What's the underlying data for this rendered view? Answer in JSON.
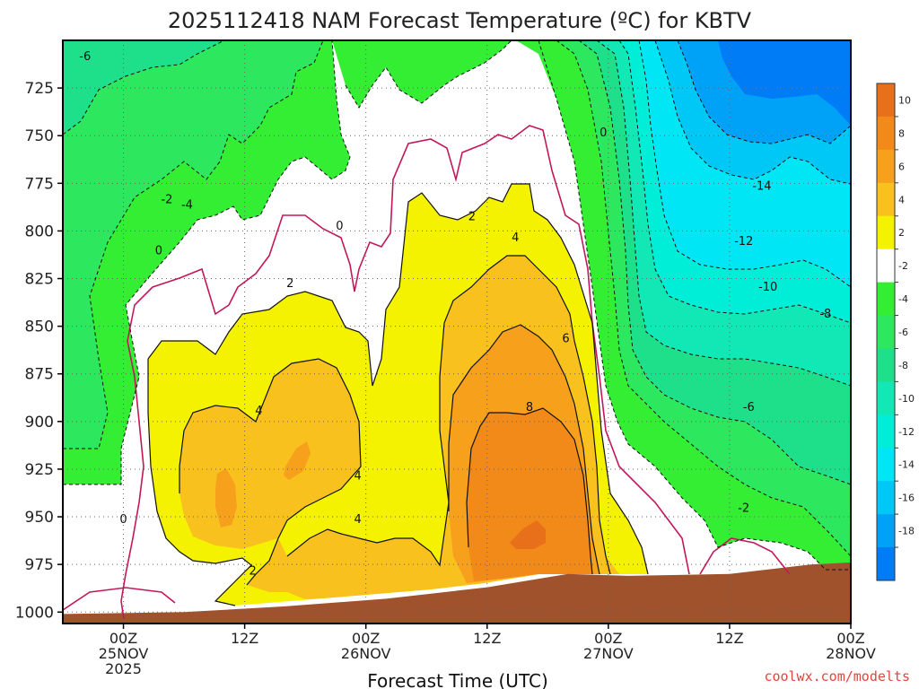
{
  "title": "2025112418 NAM Forecast Temperature (ºC) for KBTV",
  "credit": "coolwx.com/modelts",
  "chart_data": {
    "type": "heatmap",
    "title": "2025112418 NAM Forecast Temperature (ºC) for KBTV",
    "xlabel": "Forecast Time (UTC)",
    "ylabel": "",
    "y_axis": {
      "units": "hPa",
      "ticks": [
        "725",
        "750",
        "775",
        "800",
        "825",
        "850",
        "875",
        "900",
        "925",
        "950",
        "975",
        "1000"
      ],
      "range": [
        700,
        1006
      ],
      "inverted": true
    },
    "x_axis": {
      "range_hours": [
        18,
        96
      ],
      "ticks": [
        {
          "hour": 24,
          "line1": "00Z",
          "line2": "25NOV",
          "line3": "2025"
        },
        {
          "hour": 36,
          "line1": "12Z",
          "line2": "",
          "line3": ""
        },
        {
          "hour": 48,
          "line1": "00Z",
          "line2": "26NOV",
          "line3": ""
        },
        {
          "hour": 60,
          "line1": "12Z",
          "line2": "",
          "line3": ""
        },
        {
          "hour": 72,
          "line1": "00Z",
          "line2": "27NOV",
          "line3": ""
        },
        {
          "hour": 84,
          "line1": "12Z",
          "line2": "",
          "line3": ""
        },
        {
          "hour": 96,
          "line1": "00Z",
          "line2": "28NOV",
          "line3": ""
        }
      ]
    },
    "grid": true,
    "colorbar": {
      "labels": [
        "10",
        "8",
        "6",
        "4",
        "2",
        "-2",
        "-4",
        "-6",
        "-8",
        "-10",
        "-12",
        "-14",
        "-16",
        "-18"
      ],
      "bins": [
        {
          "lo": 10,
          "hi": 12,
          "color": "#e8701a"
        },
        {
          "lo": 8,
          "hi": 10,
          "color": "#f28a1a"
        },
        {
          "lo": 6,
          "hi": 8,
          "color": "#f6a01c"
        },
        {
          "lo": 4,
          "hi": 6,
          "color": "#f8c11e"
        },
        {
          "lo": 2,
          "hi": 4,
          "color": "#f5f200"
        },
        {
          "lo": -2,
          "hi": 2,
          "color": "#ffffff"
        },
        {
          "lo": -4,
          "hi": -2,
          "color": "#33ee33"
        },
        {
          "lo": -6,
          "hi": -4,
          "color": "#2de85e"
        },
        {
          "lo": -8,
          "hi": -6,
          "color": "#1fe08a"
        },
        {
          "lo": -10,
          "hi": -8,
          "color": "#11e8b6"
        },
        {
          "lo": -12,
          "hi": -10,
          "color": "#00eed8"
        },
        {
          "lo": -14,
          "hi": -12,
          "color": "#00e6f4"
        },
        {
          "lo": -16,
          "hi": -14,
          "color": "#00c8f6"
        },
        {
          "lo": -18,
          "hi": -16,
          "color": "#00a2f8"
        },
        {
          "lo": -20,
          "hi": -18,
          "color": "#007cf7"
        }
      ]
    },
    "contour_labels": [
      {
        "text": "-6",
        "hour": 20.2,
        "p": 708
      },
      {
        "text": "0",
        "hour": 71.5,
        "p": 748
      },
      {
        "text": "-14",
        "hour": 87.2,
        "p": 776
      },
      {
        "text": "-2",
        "hour": 28.3,
        "p": 783
      },
      {
        "text": "-4",
        "hour": 30.3,
        "p": 786
      },
      {
        "text": "0",
        "hour": 45.4,
        "p": 797
      },
      {
        "text": "2",
        "hour": 58.5,
        "p": 792
      },
      {
        "text": "-12",
        "hour": 85.4,
        "p": 805
      },
      {
        "text": "0",
        "hour": 27.5,
        "p": 810
      },
      {
        "text": "4",
        "hour": 62.8,
        "p": 803
      },
      {
        "text": "2",
        "hour": 40.5,
        "p": 827
      },
      {
        "text": "-10",
        "hour": 87.8,
        "p": 829
      },
      {
        "text": "-8",
        "hour": 93.5,
        "p": 843
      },
      {
        "text": "6",
        "hour": 67.8,
        "p": 856
      },
      {
        "text": "4",
        "hour": 37.4,
        "p": 894
      },
      {
        "text": "8",
        "hour": 64.2,
        "p": 892
      },
      {
        "text": "-6",
        "hour": 85.9,
        "p": 892
      },
      {
        "text": "4",
        "hour": 47.2,
        "p": 928
      },
      {
        "text": "4",
        "hour": 47.2,
        "p": 951
      },
      {
        "text": "0",
        "hour": 24.0,
        "p": 951
      },
      {
        "text": "-2",
        "hour": 85.4,
        "p": 945
      },
      {
        "text": "2",
        "hour": 36.8,
        "p": 978
      }
    ],
    "terrain_surface": [
      {
        "hour": 18,
        "p": 1001
      },
      {
        "hour": 30,
        "p": 1000
      },
      {
        "hour": 40,
        "p": 997
      },
      {
        "hour": 50,
        "p": 993
      },
      {
        "hour": 60,
        "p": 987
      },
      {
        "hour": 68,
        "p": 980
      },
      {
        "hour": 74,
        "p": 981
      },
      {
        "hour": 84,
        "p": 980
      },
      {
        "hour": 92,
        "p": 975
      },
      {
        "hour": 96,
        "p": 974
      }
    ]
  }
}
